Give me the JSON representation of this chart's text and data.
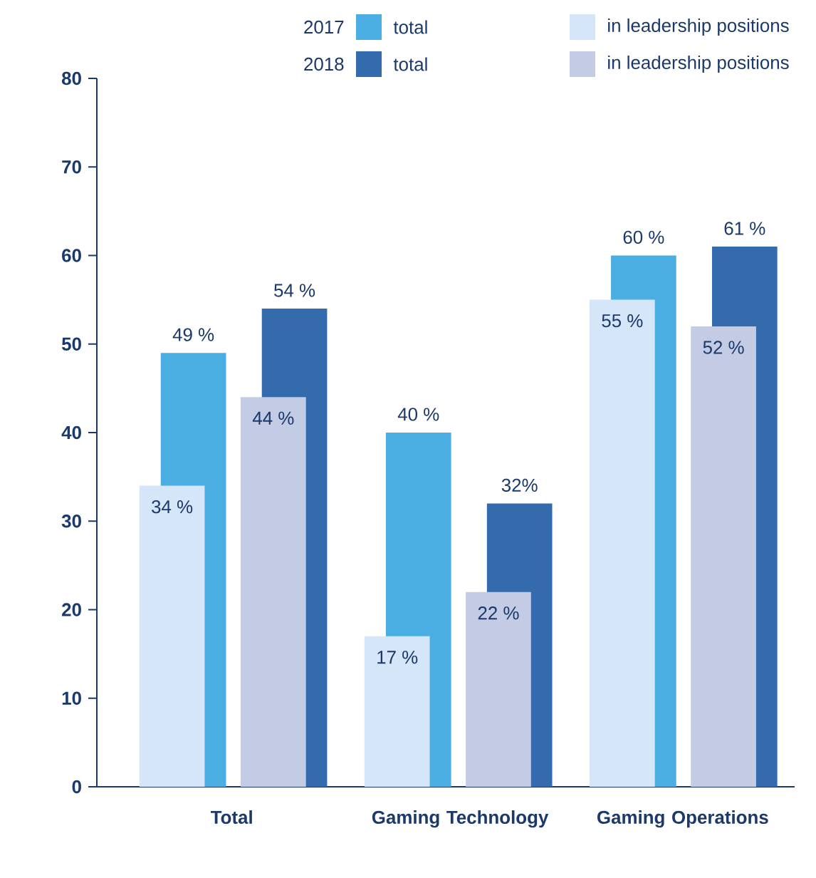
{
  "chart_data": {
    "type": "bar",
    "categories": [
      "Total",
      "Gaming Technology",
      "Gaming Operations"
    ],
    "series": [
      {
        "name": "total",
        "color": "#4aaee2",
        "values": [
          49,
          40,
          60
        ],
        "value_labels": [
          "49 %",
          "40 %",
          "60 %"
        ]
      },
      {
        "name": "in leadership positions",
        "color": "#d4e6f7",
        "values": [
          34,
          17,
          55
        ],
        "value_labels": [
          "34 %",
          "17 %",
          "55 %"
        ]
      },
      {
        "name": "total",
        "color": "#346bad",
        "values": [
          54,
          32,
          61
        ],
        "value_labels": [
          "54 %",
          "32%",
          "61 %"
        ]
      },
      {
        "name": "in leadership positions",
        "color": "#c3cbe5",
        "values": [
          44,
          22,
          52
        ],
        "value_labels": [
          "44 %",
          "22 %",
          "52 %"
        ]
      }
    ],
    "annotations": [
      "2017",
      "2018"
    ],
    "ylim": [
      0,
      80
    ],
    "yticks": [
      0,
      10,
      20,
      30,
      40,
      50,
      60,
      70,
      80
    ],
    "grid": false,
    "legend": "top"
  }
}
